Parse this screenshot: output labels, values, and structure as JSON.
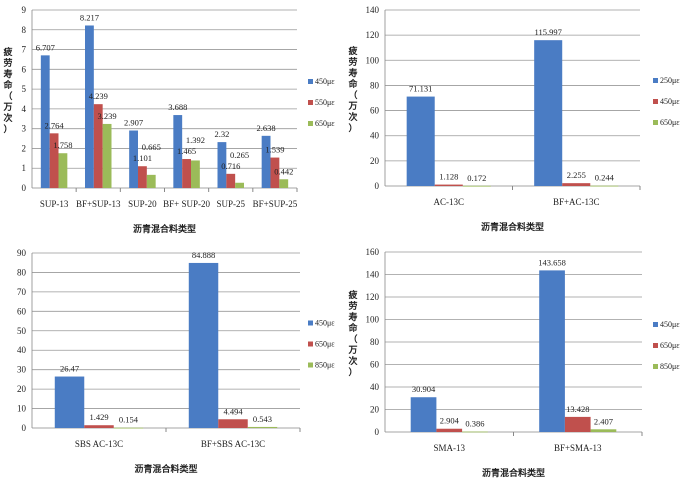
{
  "colors": [
    "#4a7cc4",
    "#c0504d",
    "#9bbb59"
  ],
  "chart_data": [
    {
      "type": "bar",
      "title": "",
      "xlabel": "沥青混合料类型",
      "ylabel": "疲劳寿命（万次）",
      "ylim": [
        0,
        9
      ],
      "ystep": 1,
      "legend": "right",
      "categories": [
        "SUP-13",
        "BF+SUP-13",
        "SUP-20",
        "BF+ SUP-20",
        "SUP-25",
        "BF+SUP-25"
      ],
      "series": [
        {
          "name": "450με",
          "values": [
            6.707,
            8.217,
            2.907,
            3.688,
            2.32,
            2.638
          ],
          "labels": [
            "6.707",
            "8.217",
            "2.907",
            "3.688",
            "2.32",
            "2.638"
          ]
        },
        {
          "name": "550με",
          "values": [
            2.764,
            4.239,
            1.101,
            1.465,
            0.716,
            1.539
          ],
          "labels": [
            "2.764",
            "4.239",
            "1.101",
            "1.465",
            "0.716",
            "1.539"
          ]
        },
        {
          "name": "650με",
          "values": [
            1.758,
            3.239,
            0.665,
            1.392,
            0.265,
            0.442
          ],
          "labels": [
            "1.758",
            "3.239",
            "0.665",
            "1.392",
            "0.265",
            "0.442"
          ]
        }
      ]
    },
    {
      "type": "bar",
      "title": "",
      "xlabel": "沥青混合料类型",
      "ylabel": "疲劳寿命（万次）",
      "ylim": [
        0,
        140
      ],
      "ystep": 20,
      "legend": "right",
      "categories": [
        "AC-13C",
        "BF+AC-13C"
      ],
      "series": [
        {
          "name": "250με",
          "values": [
            71.131,
            115.997
          ],
          "labels": [
            "71.131",
            "115.997"
          ]
        },
        {
          "name": "450με",
          "values": [
            1.128,
            2.255
          ],
          "labels": [
            "1.128",
            "2.255"
          ]
        },
        {
          "name": "650με",
          "values": [
            0.172,
            0.244
          ],
          "labels": [
            "0.172",
            "0.244"
          ]
        }
      ]
    },
    {
      "type": "bar",
      "title": "",
      "xlabel": "沥青混合料类型",
      "ylabel": "",
      "ylim": [
        0,
        90
      ],
      "ystep": 10,
      "legend": "right",
      "categories": [
        "SBS AC-13C",
        "BF+SBS AC-13C"
      ],
      "series": [
        {
          "name": "450με",
          "values": [
            26.47,
            84.888
          ],
          "labels": [
            "26.47",
            "84.888"
          ]
        },
        {
          "name": "650με",
          "values": [
            1.429,
            4.494
          ],
          "labels": [
            "1.429",
            "4.494"
          ]
        },
        {
          "name": "850με",
          "values": [
            0.154,
            0.543
          ],
          "labels": [
            "0.154",
            "0.543"
          ]
        }
      ]
    },
    {
      "type": "bar",
      "title": "",
      "xlabel": "沥青混合料类型",
      "ylabel": "疲劳寿命（万次）",
      "ylim": [
        0,
        160
      ],
      "ystep": 20,
      "legend": "right",
      "categories": [
        "SMA-13",
        "BF+SMA-13"
      ],
      "series": [
        {
          "name": "450με",
          "values": [
            30.904,
            143.658
          ],
          "labels": [
            "30.904",
            "143.658"
          ]
        },
        {
          "name": "650με",
          "values": [
            2.904,
            13.428
          ],
          "labels": [
            "2.904",
            "13.428"
          ]
        },
        {
          "name": "850με",
          "values": [
            0.386,
            2.407
          ],
          "labels": [
            "0.386",
            "2.407"
          ]
        }
      ]
    }
  ]
}
